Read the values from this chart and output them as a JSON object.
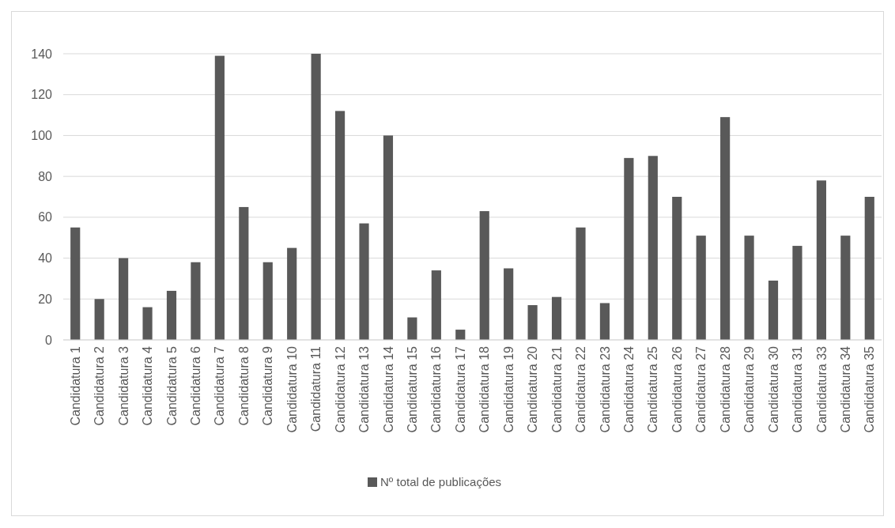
{
  "chart_data": {
    "type": "bar",
    "categories": [
      "Candidatura 1",
      "Candidatura 2",
      "Candidatura 3",
      "Candidatura 4",
      "Candidatura 5",
      "Candidatura 6",
      "Candidatura 7",
      "Candidatura 8",
      "Candidatura 9",
      "Candidatura 10",
      "Candidatura 11",
      "Candidatura 12",
      "Candidatura 13",
      "Candidatura 14",
      "Candidatura 15",
      "Candidatura 16",
      "Candidatura 17",
      "Candidatura 18",
      "Candidatura 19",
      "Candidatura 20",
      "Candidatura 21",
      "Candidatura 22",
      "Candidatura 23",
      "Candidatura 24",
      "Candidatura 25",
      "Candidatura 26",
      "Candidatura 27",
      "Candidatura 28",
      "Candidatura 29",
      "Candidatura 30",
      "Candidatura 31",
      "Candidatura 33",
      "Candidatura 34",
      "Candidatura 35"
    ],
    "series": [
      {
        "name": "Nº total de publicações",
        "color": "#595959",
        "values": [
          55,
          20,
          40,
          16,
          24,
          38,
          139,
          65,
          38,
          45,
          140,
          112,
          57,
          100,
          11,
          34,
          5,
          63,
          35,
          17,
          21,
          55,
          18,
          89,
          90,
          70,
          51,
          109,
          51,
          29,
          46,
          78,
          51,
          70
        ]
      }
    ],
    "ylim": [
      0,
      140
    ],
    "yticks": [
      0,
      20,
      40,
      60,
      80,
      100,
      120,
      140
    ],
    "grid": "y",
    "legend": "bottom"
  }
}
